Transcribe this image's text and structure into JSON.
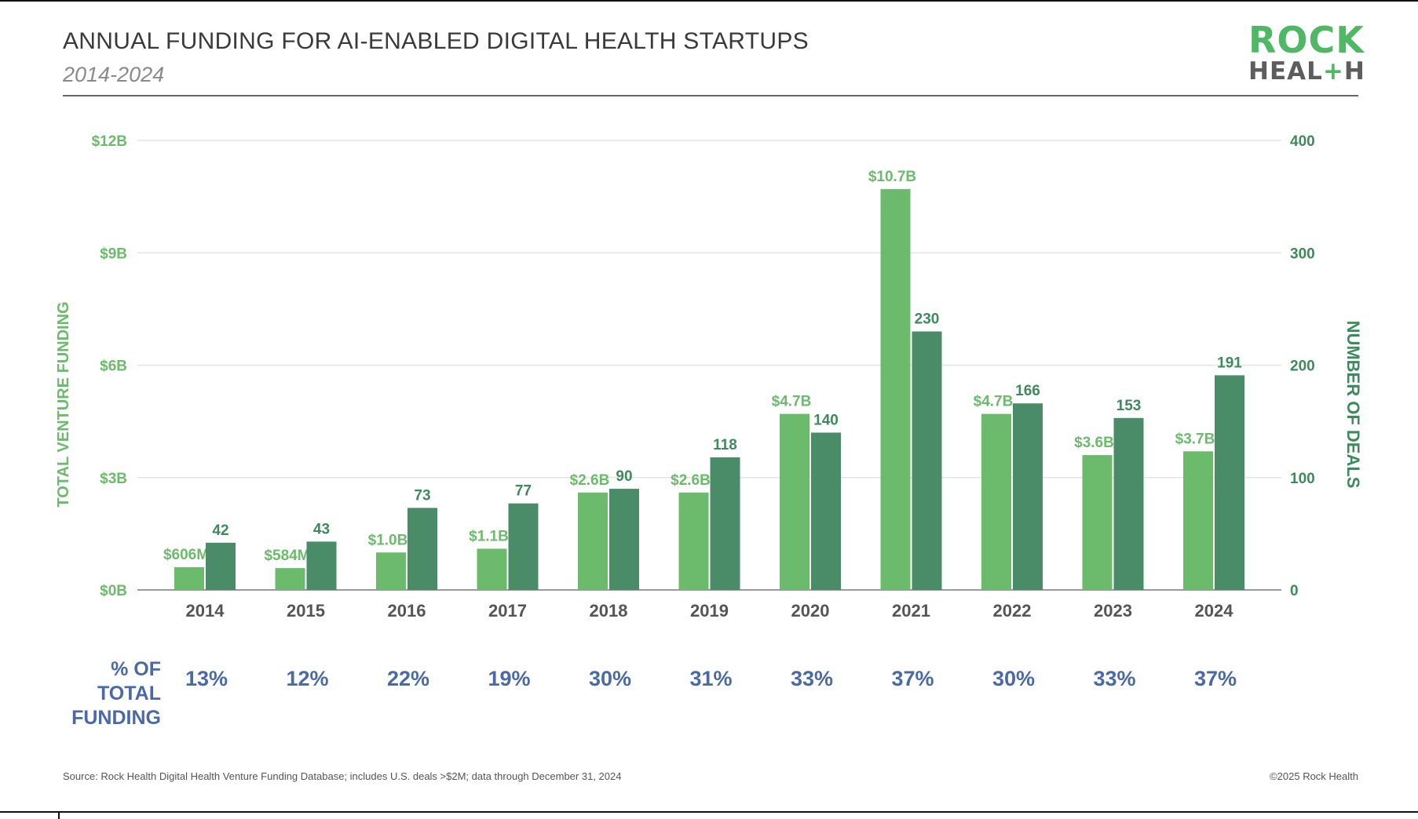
{
  "title": "ANNUAL FUNDING FOR AI-ENABLED DIGITAL HEALTH STARTUPS",
  "subtitle": "2014-2024",
  "logo": {
    "top": "ROCK",
    "bottom_a": "HEAL",
    "bottom_plus": "+",
    "bottom_b": "H"
  },
  "percent_row": {
    "label_line1": "% OF TOTAL",
    "label_line2": "FUNDING",
    "values": [
      "13%",
      "12%",
      "22%",
      "19%",
      "30%",
      "31%",
      "33%",
      "37%",
      "30%",
      "33%",
      "37%"
    ]
  },
  "footer": {
    "source": "Source: Rock Health Digital Health Venture Funding Database; includes U.S. deals >$2M; data through December 31, 2024",
    "copyright": "©2025 Rock Health"
  },
  "colors": {
    "funding_bar": "#6cbb6c",
    "deals_bar": "#4a8c68",
    "funding_text": "#6cbb6c",
    "deals_text": "#3f8a5c",
    "percent_text": "#4a6aa5"
  },
  "chart_data": {
    "type": "bar",
    "categories": [
      "2014",
      "2015",
      "2016",
      "2017",
      "2018",
      "2019",
      "2020",
      "2021",
      "2022",
      "2023",
      "2024"
    ],
    "series": [
      {
        "name": "TOTAL VENTURE FUNDING",
        "axis": "left",
        "values": [
          0.606,
          0.584,
          1.0,
          1.1,
          2.6,
          2.6,
          4.7,
          10.7,
          4.7,
          3.6,
          3.7
        ],
        "labels": [
          "$606M",
          "$584M",
          "$1.0B",
          "$1.1B",
          "$2.6B",
          "$2.6B",
          "$4.7B",
          "$10.7B",
          "$4.7B",
          "$3.6B",
          "$3.7B"
        ]
      },
      {
        "name": "NUMBER OF DEALS",
        "axis": "right",
        "values": [
          42,
          43,
          73,
          77,
          90,
          118,
          140,
          230,
          166,
          153,
          191
        ],
        "labels": [
          "42",
          "43",
          "73",
          "77",
          "90",
          "118",
          "140",
          "230",
          "166",
          "153",
          "191"
        ]
      }
    ],
    "ylabel_left": "TOTAL VENTURE FUNDING",
    "ylabel_right": "NUMBER OF DEALS",
    "ylim_left": [
      0,
      12
    ],
    "ylim_right": [
      0,
      400
    ],
    "yticks_left": [
      "$0B",
      "$3B",
      "$6B",
      "$9B",
      "$12B"
    ],
    "yticks_right": [
      "0",
      "100",
      "200",
      "300",
      "400"
    ],
    "grid": true
  }
}
